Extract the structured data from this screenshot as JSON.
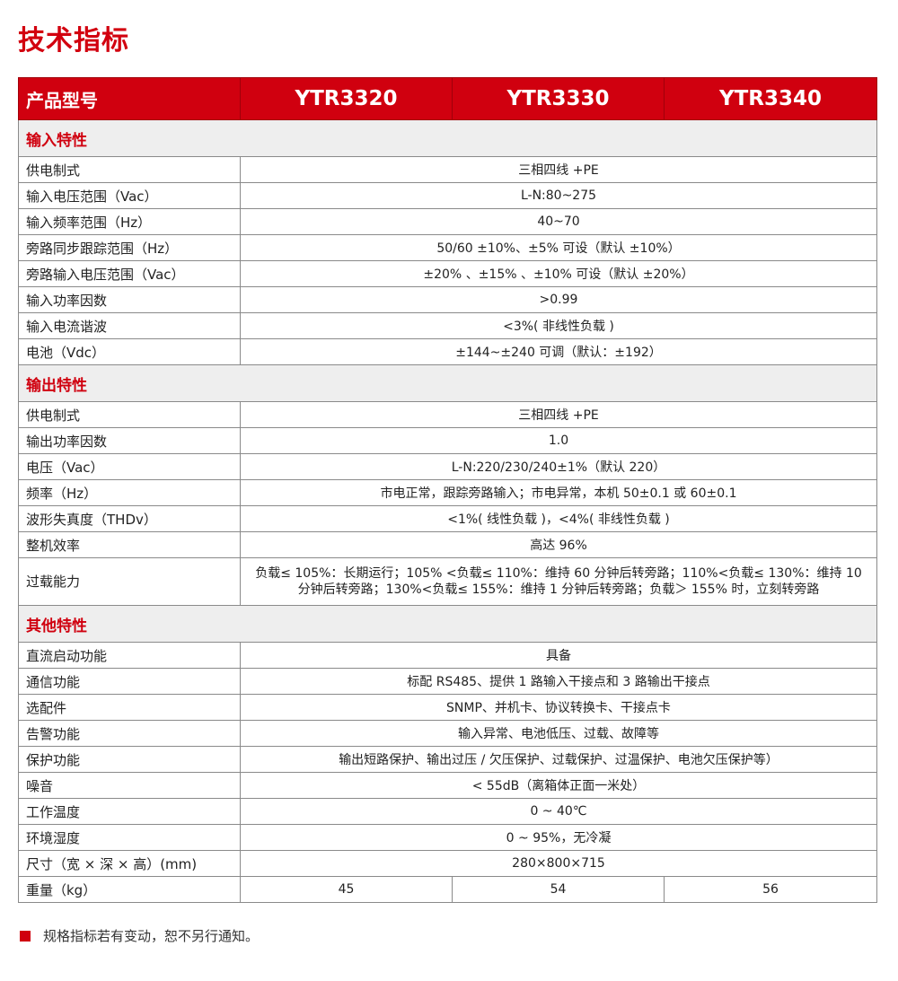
{
  "title": "技术指标",
  "header": {
    "label": "产品型号",
    "models": [
      "YTR3320",
      "YTR3330",
      "YTR3340"
    ]
  },
  "sections": [
    {
      "title": "输入特性",
      "rows": [
        {
          "label": "供电制式",
          "value": "三相四线 +PE"
        },
        {
          "label": "输入电压范围（Vac）",
          "value": "L-N:80~275"
        },
        {
          "label": "输入频率范围（Hz）",
          "value": "40~70"
        },
        {
          "label": "旁路同步跟踪范围（Hz）",
          "value": "50/60  ±10%、±5% 可设（默认 ±10%）"
        },
        {
          "label": "旁路输入电压范围（Vac）",
          "value": "±20% 、±15% 、±10% 可设（默认 ±20%）"
        },
        {
          "label": "输入功率因数",
          "value": ">0.99"
        },
        {
          "label": "输入电流谐波",
          "value": "<3%( 非线性负载 )"
        },
        {
          "label": "电池（Vdc）",
          "value": "±144~±240 可调（默认：±192）"
        }
      ]
    },
    {
      "title": "输出特性",
      "rows": [
        {
          "label": "供电制式",
          "value": "三相四线 +PE"
        },
        {
          "label": "输出功率因数",
          "value": "1.0"
        },
        {
          "label": "电压（Vac）",
          "value": "L-N:220/230/240±1%（默认 220）"
        },
        {
          "label": "频率（Hz）",
          "value": "市电正常，跟踪旁路输入；市电异常，本机 50±0.1 或 60±0.1"
        },
        {
          "label": "波形失真度（THDv）",
          "value": "<1%( 线性负载 )，<4%( 非线性负载 )"
        },
        {
          "label": "整机效率",
          "value": "高达 96%"
        },
        {
          "label": "过载能力",
          "value": "负载≤ 105%：长期运行；105% <负载≤ 110%：维持 60 分钟后转旁路；110%<负载≤ 130%：维持 10 分钟后转旁路；130%<负载≤ 155%：维持 1 分钟后转旁路；负载＞ 155% 时，立刻转旁路",
          "tall": true
        }
      ]
    },
    {
      "title": "其他特性",
      "rows": [
        {
          "label": "直流启动功能",
          "value": "具备"
        },
        {
          "label": "通信功能",
          "value": "标配 RS485、提供 1 路输入干接点和 3 路输出干接点"
        },
        {
          "label": "选配件",
          "value": "SNMP、并机卡、协议转换卡、干接点卡"
        },
        {
          "label": "告警功能",
          "value": "输入异常、电池低压、过载、故障等"
        },
        {
          "label": "保护功能",
          "value": "输出短路保护、输出过压 / 欠压保护、过载保护、过温保护、电池欠压保护等）"
        },
        {
          "label": "噪音",
          "value": "< 55dB（离箱体正面一米处）"
        },
        {
          "label": "工作温度",
          "value": "0 ~ 40℃"
        },
        {
          "label": "环境湿度",
          "value": "0 ~ 95%，无冷凝"
        },
        {
          "label": "尺寸（宽 × 深 × 高）(mm)",
          "value": "280×800×715"
        },
        {
          "label": "重量（kg）",
          "values": [
            "45",
            "54",
            "56"
          ]
        }
      ]
    }
  ],
  "footnote": "规格指标若有变动，恕不另行通知。",
  "colors": {
    "accent": "#d0000f",
    "section_bg": "#eeeeee"
  }
}
